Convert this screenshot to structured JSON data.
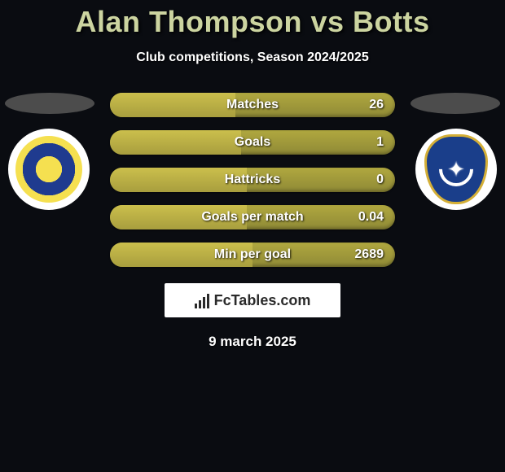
{
  "title": "Alan Thompson vs Botts",
  "subtitle": "Club competitions, Season 2024/2025",
  "colors": {
    "background": "#0a0c11",
    "title": "#ccd4a0",
    "bar_base": "#8f8a36",
    "bar_fill": "#cbbf4c",
    "text": "#ffffff"
  },
  "left_player": {
    "name": "Alan Thompson",
    "badge": "leeds"
  },
  "right_player": {
    "name": "Botts",
    "badge": "portsmouth"
  },
  "stats": [
    {
      "label": "Matches",
      "value": "26",
      "fill_pct": 44
    },
    {
      "label": "Goals",
      "value": "1",
      "fill_pct": 46
    },
    {
      "label": "Hattricks",
      "value": "0",
      "fill_pct": 48
    },
    {
      "label": "Goals per match",
      "value": "0.04",
      "fill_pct": 48
    },
    {
      "label": "Min per goal",
      "value": "2689",
      "fill_pct": 50
    }
  ],
  "brand": "FcTables.com",
  "date": "9 march 2025"
}
